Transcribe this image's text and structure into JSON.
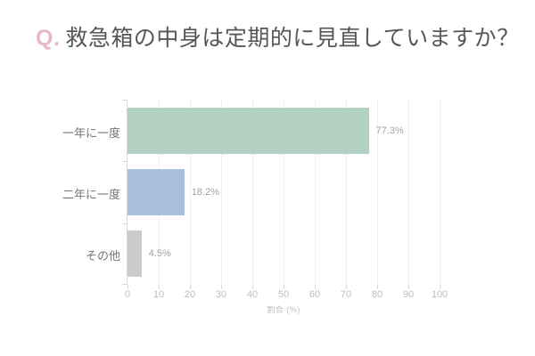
{
  "title": {
    "prefix": "Q.",
    "text": "救急箱の中身は定期的に見直していますか？"
  },
  "colors": {
    "accent_pink": "#e6b7c9",
    "title_text": "#575757",
    "grid_line": "#f0f0f0",
    "axis_line": "#d8d8d8",
    "tick_label": "#bdbdbd",
    "value_label": "#a3a3a3",
    "category_label": "#757575"
  },
  "chart_data": {
    "type": "bar",
    "orientation": "horizontal",
    "title": "Q. 救急箱の中身は定期的に見直していますか？",
    "categories": [
      "一年に一度",
      "二年に一度",
      "その他"
    ],
    "values": [
      77.3,
      18.2,
      4.5
    ],
    "value_labels": [
      "77.3%",
      "18.2%",
      "4.5%"
    ],
    "bar_colors": [
      "#b3d1c2",
      "#a9c0dc",
      "#cbcbcb"
    ],
    "xlabel": "割合 (%)",
    "xlim": [
      0,
      100
    ],
    "xticks": [
      0,
      10,
      20,
      30,
      40,
      50,
      60,
      70,
      80,
      90,
      100
    ],
    "grid": "vertical",
    "legend": "none"
  }
}
